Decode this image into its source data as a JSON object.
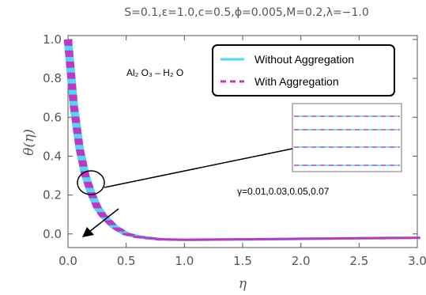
{
  "chart_data": {
    "type": "line",
    "title": "S=0.1,ε=1.0,c=0.5,ϕ=0.005,M=0.2,λ=−1.0",
    "xlabel": "η",
    "ylabel": "θ(η)",
    "xlim": [
      0,
      3.0
    ],
    "ylim": [
      -0.07,
      1.02
    ],
    "x_ticks": [
      "0.0",
      "0.5",
      "1.0",
      "1.5",
      "2.0",
      "2.5",
      "3.0"
    ],
    "y_ticks": [
      "0.0",
      "0.2",
      "0.4",
      "0.6",
      "0.8",
      "1.0"
    ],
    "grid": false,
    "legend_position": "top-right",
    "series": [
      {
        "name": "Without Aggregation",
        "color": "#4fd8ef",
        "style": "solid",
        "params": [
          0.01,
          0.03,
          0.05,
          0.07
        ]
      },
      {
        "name": "With Aggregation",
        "color": "#c533c5",
        "style": "dashed",
        "params": [
          0.01,
          0.03,
          0.05,
          0.07
        ]
      }
    ],
    "curve_samples": {
      "x": [
        0,
        0.05,
        0.1,
        0.15,
        0.2,
        0.25,
        0.3,
        0.4,
        0.5,
        0.6,
        0.8,
        1.0,
        1.5,
        2.0,
        2.5,
        3.0
      ],
      "y": [
        1.0,
        0.66,
        0.44,
        0.3,
        0.21,
        0.14,
        0.095,
        0.035,
        0.0,
        -0.015,
        -0.028,
        -0.03,
        -0.028,
        -0.025,
        -0.022,
        -0.02
      ]
    },
    "annotations": {
      "material": "Al₂ O₃ – H₂ O",
      "parameter": "γ=0.01,0.03,0.05,0.07"
    }
  }
}
